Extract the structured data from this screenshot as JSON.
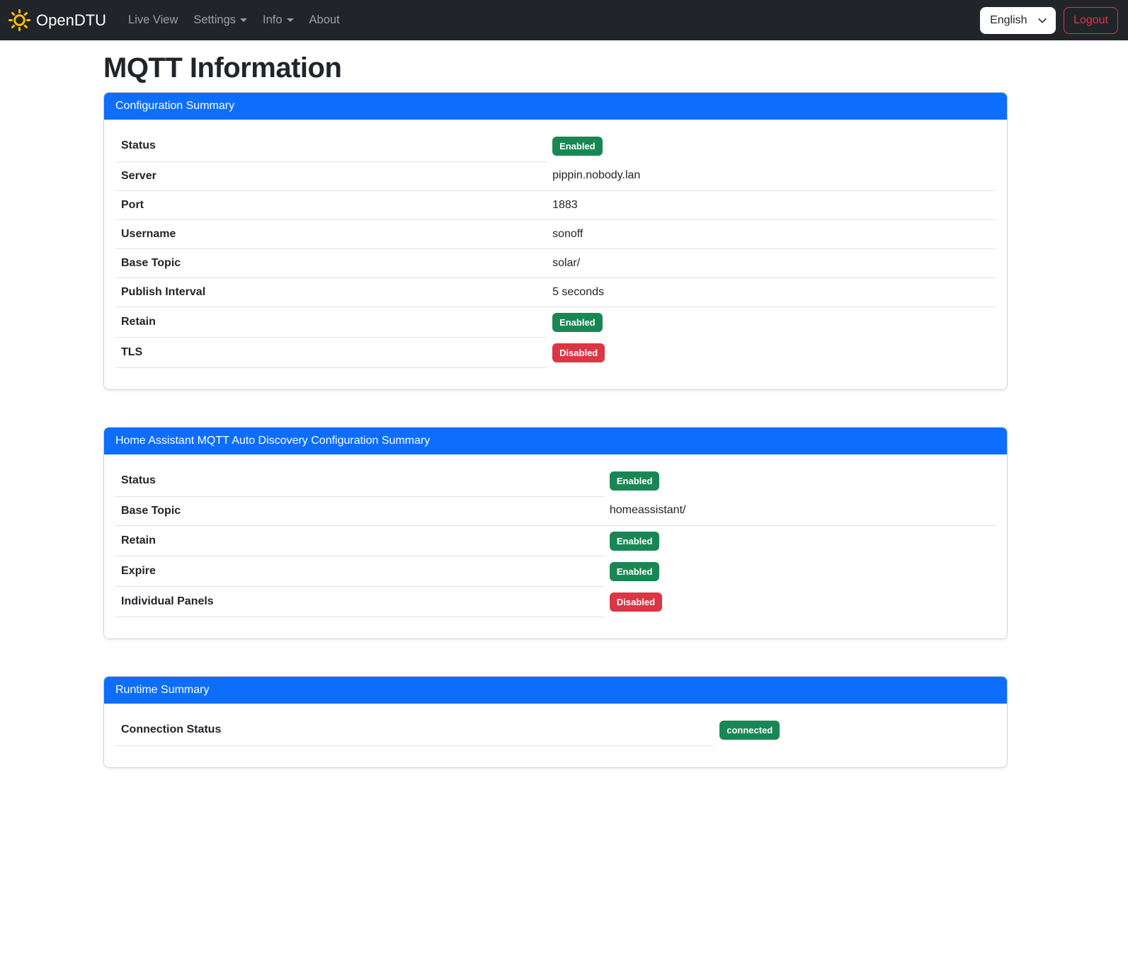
{
  "navbar": {
    "brand": "OpenDTU",
    "items": [
      {
        "label": "Live View",
        "dropdown": false
      },
      {
        "label": "Settings",
        "dropdown": true
      },
      {
        "label": "Info",
        "dropdown": true
      },
      {
        "label": "About",
        "dropdown": false
      }
    ],
    "language_selected": "English",
    "logout_label": "Logout"
  },
  "page": {
    "title": "MQTT Information"
  },
  "colors": {
    "primary": "#0d6efd",
    "success": "#198754",
    "danger": "#dc3545",
    "navbar_bg": "#212529",
    "brand_icon": "#ffc107"
  },
  "cards": [
    {
      "title": "Configuration Summary",
      "rows": [
        {
          "label": "Status",
          "type": "badge",
          "value": "Enabled",
          "variant": "success"
        },
        {
          "label": "Server",
          "type": "text",
          "value": "pippin.nobody.lan"
        },
        {
          "label": "Port",
          "type": "text",
          "value": "1883"
        },
        {
          "label": "Username",
          "type": "text",
          "value": "sonoff"
        },
        {
          "label": "Base Topic",
          "type": "text",
          "value": "solar/"
        },
        {
          "label": "Publish Interval",
          "type": "text",
          "value": "5 seconds"
        },
        {
          "label": "Retain",
          "type": "badge",
          "value": "Enabled",
          "variant": "success"
        },
        {
          "label": "TLS",
          "type": "badge",
          "value": "Disabled",
          "variant": "danger"
        }
      ]
    },
    {
      "title": "Home Assistant MQTT Auto Discovery Configuration Summary",
      "rows": [
        {
          "label": "Status",
          "type": "badge",
          "value": "Enabled",
          "variant": "success"
        },
        {
          "label": "Base Topic",
          "type": "text",
          "value": "homeassistant/"
        },
        {
          "label": "Retain",
          "type": "badge",
          "value": "Enabled",
          "variant": "success"
        },
        {
          "label": "Expire",
          "type": "badge",
          "value": "Enabled",
          "variant": "success"
        },
        {
          "label": "Individual Panels",
          "type": "badge",
          "value": "Disabled",
          "variant": "danger"
        }
      ]
    },
    {
      "title": "Runtime Summary",
      "rows": [
        {
          "label": "Connection Status",
          "type": "badge",
          "value": "connected",
          "variant": "success"
        }
      ]
    }
  ]
}
